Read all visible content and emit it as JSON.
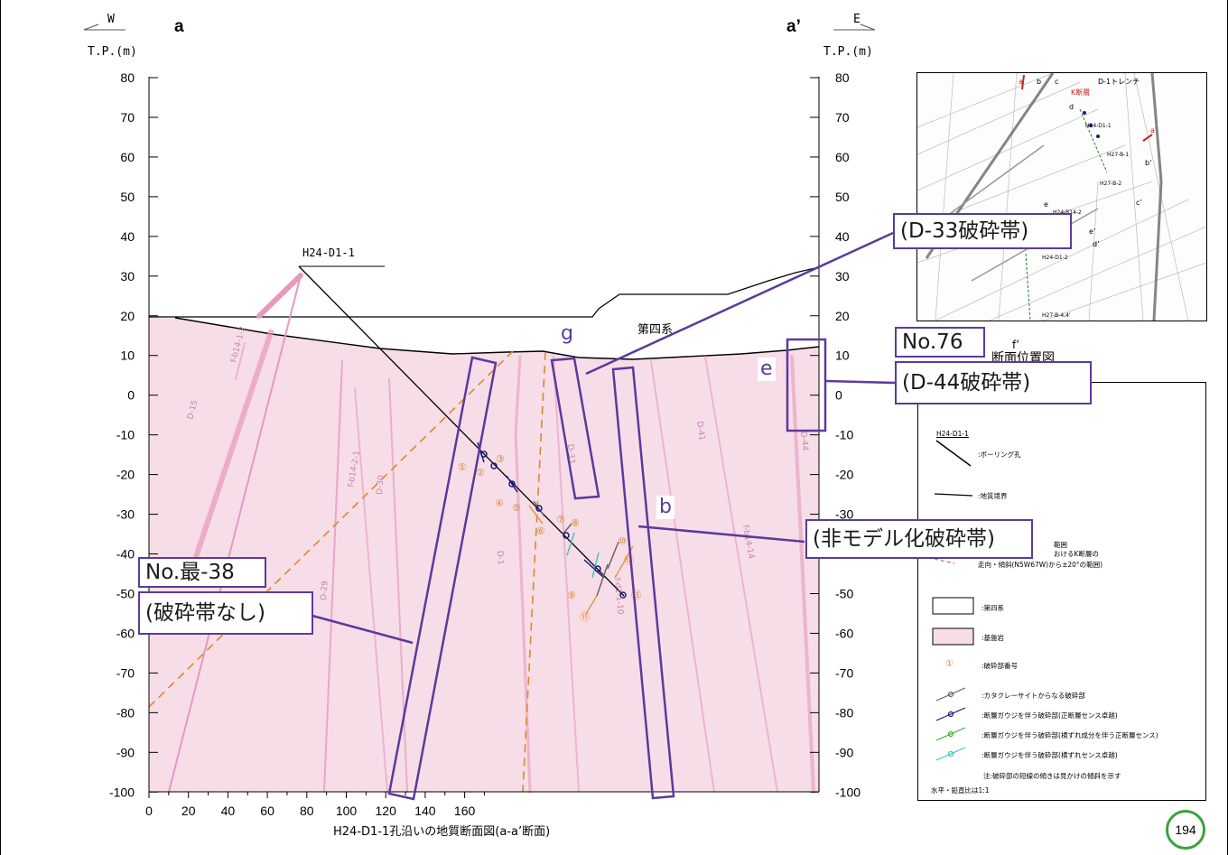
{
  "header": {
    "west_label": "W",
    "east_label": "E",
    "section_left": "a",
    "section_right": "a’",
    "elev_unit_left": "T.P.(m)",
    "elev_unit_right": "T.P.(m)"
  },
  "axes": {
    "elevations": [
      "80",
      "70",
      "60",
      "50",
      "40",
      "30",
      "20",
      "10",
      "0",
      "-10",
      "-20",
      "-30",
      "-40",
      "-50",
      "-60",
      "-70",
      "-80",
      "-90",
      "-100"
    ],
    "distances": [
      "0",
      "20",
      "40",
      "60",
      "80",
      "100",
      "120",
      "140",
      "160"
    ],
    "caption": "H24-D1-1孔沿いの地質断面図(a-a’断面)"
  },
  "section": {
    "borehole_name": "H24-D1-1",
    "quaternary_label": "第四系",
    "fault_labels": [
      "D-15",
      "f-b14-1-2",
      "f-b14-2-1",
      "D-29",
      "D-30",
      "D-1",
      "D-33",
      "D-41",
      "f-d1-1-10",
      "f-b14-14",
      "D-44"
    ],
    "fracture_numbers": [
      "①",
      "②",
      "③",
      "④",
      "⑤",
      "⑥",
      "⑦",
      "⑧",
      "⑨",
      "⑩",
      "⑪",
      "⑫",
      "⑬"
    ]
  },
  "callouts": {
    "d33": "(D-33破砕帯)",
    "d44": "(D-44破砕帯)",
    "no76": "No.76",
    "unmodeled": "(非モデル化破砕帯)",
    "no_sai38": "No.最-38",
    "no_fracture": "(破砕帯なし)",
    "letter_g": "g",
    "letter_e": "e",
    "letter_b": "b"
  },
  "inset": {
    "caption": "断面位置図",
    "labels": [
      "a",
      "b",
      "c",
      "d",
      "a’",
      "b’",
      "c’",
      "d’",
      "e",
      "e’",
      "f",
      "f’",
      "D-1トレンチ",
      "K断層",
      "H24-D1-1",
      "H27-B-1",
      "H27-B-2",
      "H24-B14-2",
      "H24-D1-2",
      "H27-B-4,4'"
    ]
  },
  "legend": {
    "items": [
      {
        "key": "H24-D1-1",
        "text": ":ボーリング孔"
      },
      {
        "key": "",
        "text": ":地質境界"
      },
      {
        "key": "",
        "text": "範囲"
      },
      {
        "key": "",
        "text": "おけるK断層の"
      },
      {
        "key": "",
        "text": "走向・傾斜(N5W67W)から±20°の範囲)"
      },
      {
        "key": "",
        "text": ":第四系"
      },
      {
        "key": "",
        "text": ":基盤岩"
      },
      {
        "key": "①",
        "text": ":破砕部番号"
      },
      {
        "key": "",
        "text": ":カタクレーサイトからなる破砕部"
      },
      {
        "key": "",
        "text": ":断層ガウジを伴う破砕部(正断層センス卓越)"
      },
      {
        "key": "",
        "text": ":断層ガウジを伴う破砕部(横ずれ成分を伴う正断層センス)"
      },
      {
        "key": "",
        "text": ":断層ガウジを伴う破砕部(横ずれセンス卓越)"
      },
      {
        "key": "",
        "text": "注:破砕部の短線の傾きは見かけの傾斜を示す"
      },
      {
        "key": "",
        "text": "水平・鉛直比は1:1"
      }
    ]
  },
  "page_number": "194",
  "colors": {
    "bedrock": "#f7dde8",
    "fault_pink": "#e59abc",
    "callout_border": "#5b3a9c",
    "dashed_orange": "#d98a2b",
    "badge_green": "#3aa33a"
  }
}
